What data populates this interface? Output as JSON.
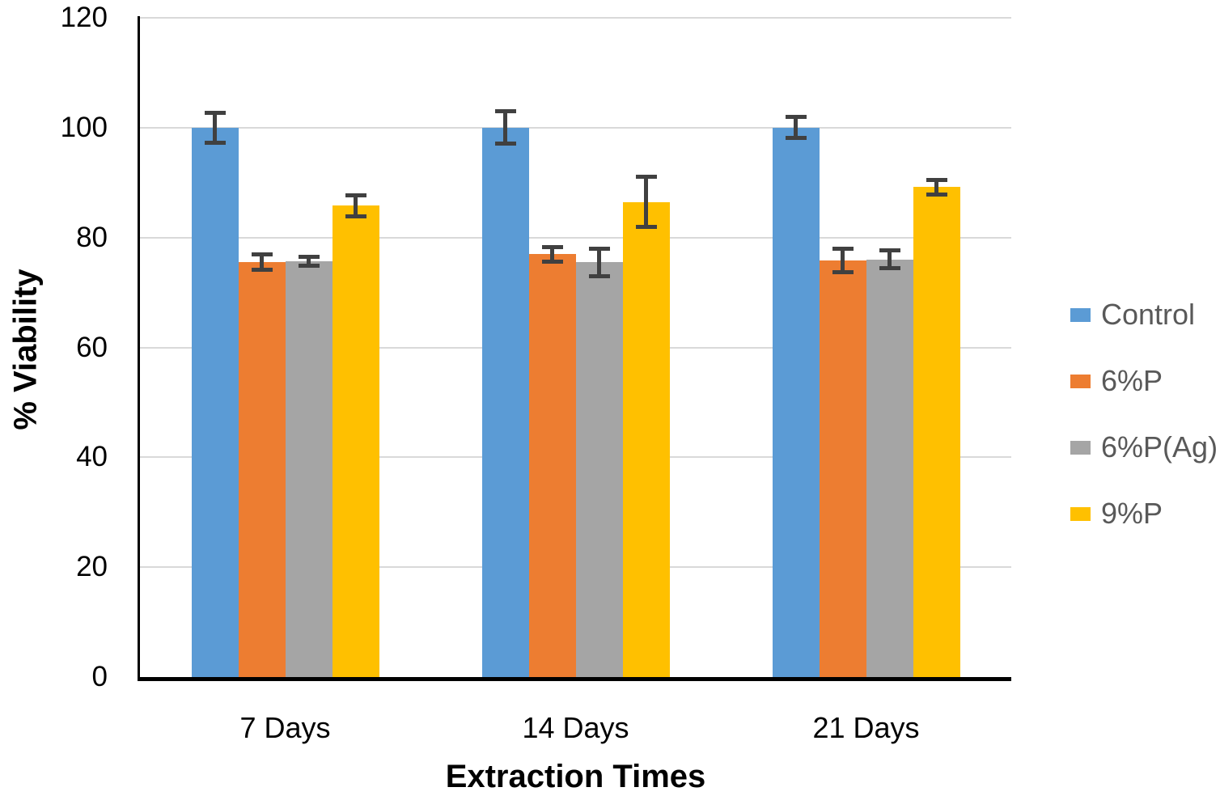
{
  "chart_data": {
    "type": "bar",
    "title": "",
    "xlabel": "Extraction Times",
    "ylabel": "% Viability",
    "categories": [
      "7 Days",
      "14 Days",
      "21 Days"
    ],
    "series": [
      {
        "name": "Control",
        "color": "#5B9BD5",
        "values": [
          100.0,
          100.0,
          100.0
        ],
        "errors": [
          2.8,
          3.0,
          2.0
        ]
      },
      {
        "name": "6%P",
        "color": "#ED7D31",
        "values": [
          75.5,
          77.0,
          75.8
        ],
        "errors": [
          1.5,
          1.4,
          2.2
        ]
      },
      {
        "name": "6%P(Ag)",
        "color": "#A5A5A5",
        "values": [
          75.7,
          75.5,
          76.0
        ],
        "errors": [
          0.9,
          2.6,
          1.7
        ]
      },
      {
        "name": "9%P",
        "color": "#FFC000",
        "values": [
          85.8,
          86.5,
          89.2
        ],
        "errors": [
          2.0,
          4.7,
          1.4
        ]
      }
    ],
    "ylim": [
      0,
      120
    ],
    "yticks": [
      0,
      20,
      40,
      60,
      80,
      100,
      120
    ],
    "grid": true,
    "legend_position": "right",
    "colors": {
      "gridline": "#D9D9D9",
      "axis_line": "#000000",
      "error_bar": "#404040",
      "tick_label": "#000000",
      "legend_text": "#595959",
      "background": "#FFFFFF"
    }
  }
}
